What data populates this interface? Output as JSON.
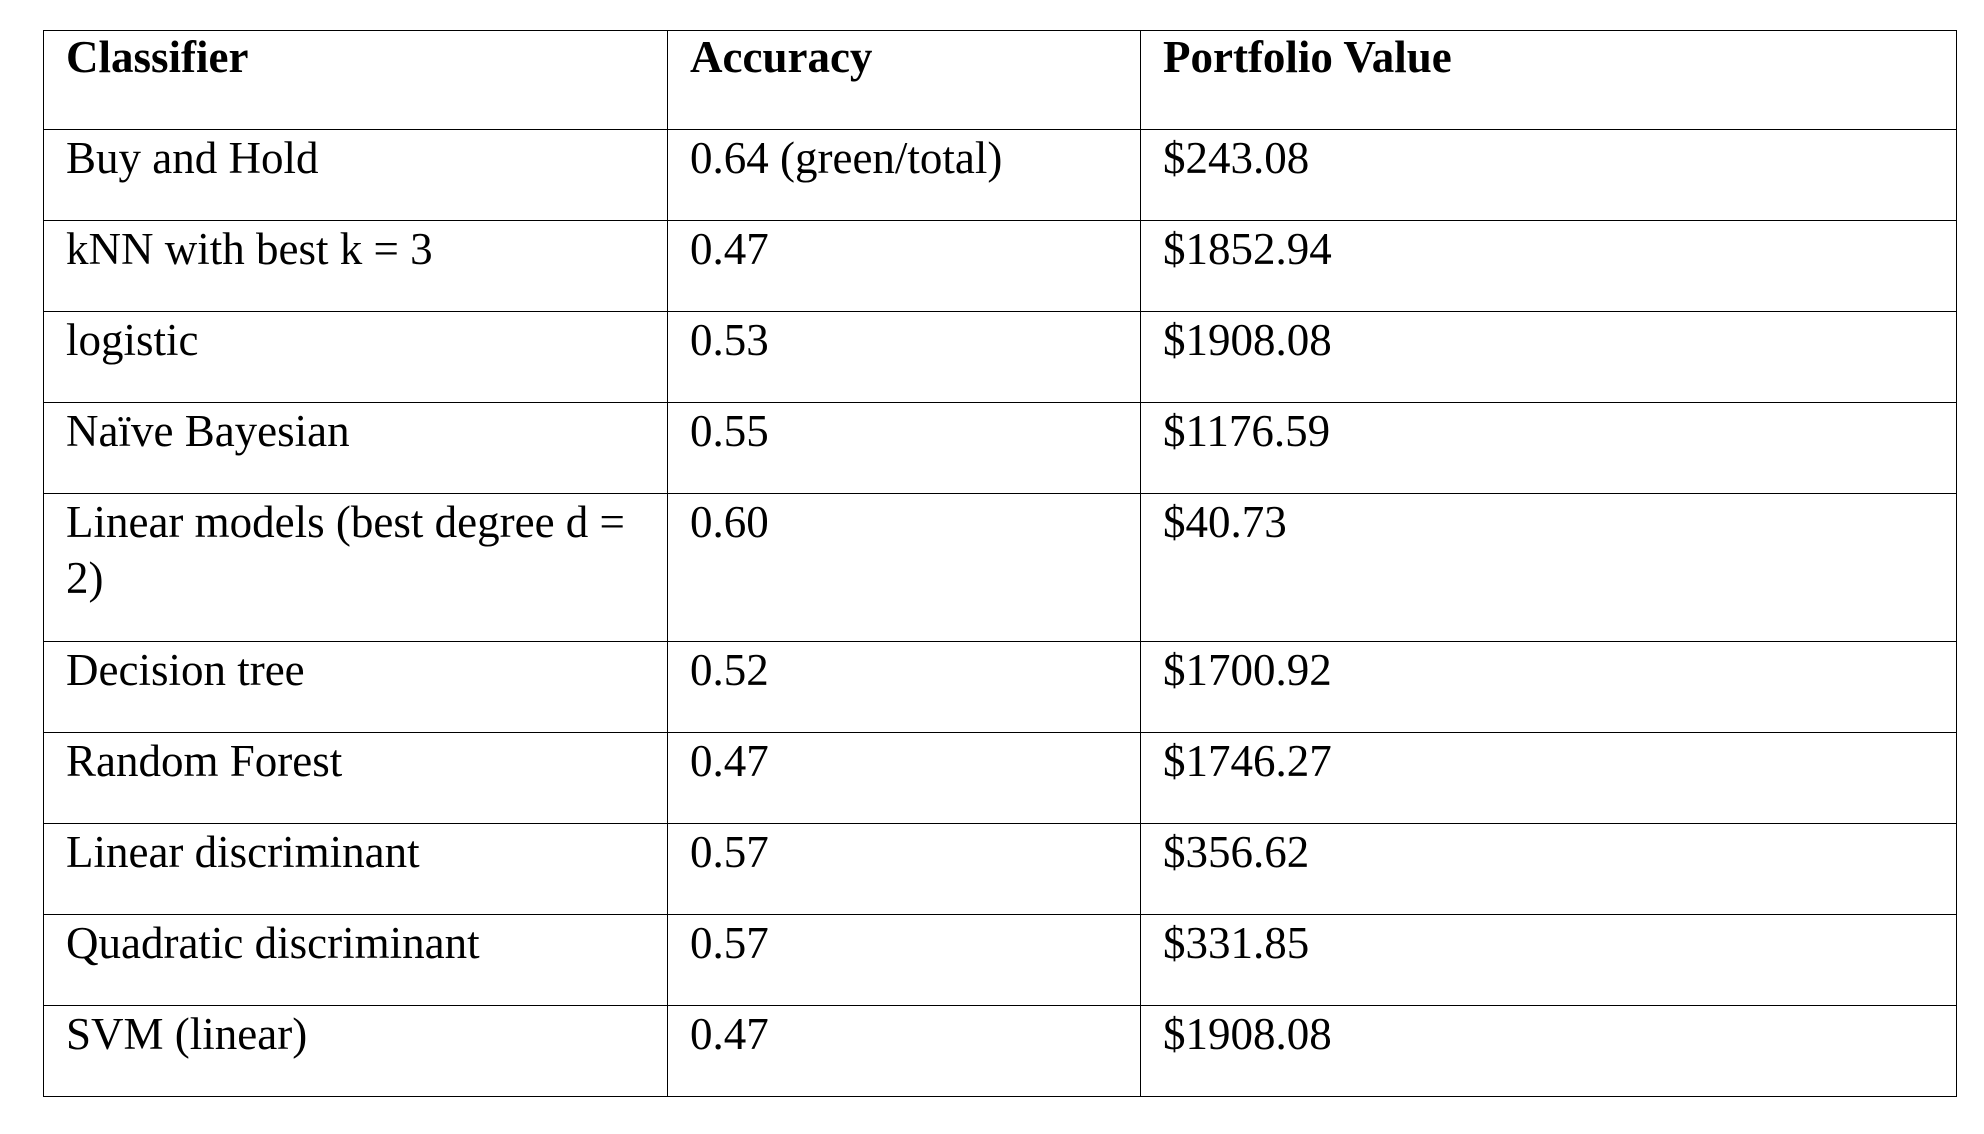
{
  "table": {
    "headers": [
      "Classifier",
      "Accuracy",
      "Portfolio Value"
    ],
    "rows": [
      [
        "Buy and Hold",
        "0.64 (green/total)",
        "$243.08"
      ],
      [
        "kNN with best k = 3",
        "0.47",
        "$1852.94"
      ],
      [
        "logistic",
        "0.53",
        "$1908.08"
      ],
      [
        "Naïve Bayesian",
        "0.55",
        "$1176.59"
      ],
      [
        "Linear models (best degree d = 2)",
        "0.60",
        "$40.73"
      ],
      [
        "Decision tree",
        "0.52",
        "$1700.92"
      ],
      [
        "Random Forest",
        "0.47",
        "$1746.27"
      ],
      [
        "Linear discriminant",
        "0.57",
        "$356.62"
      ],
      [
        "Quadratic discriminant",
        "0.57",
        "$331.85"
      ],
      [
        "SVM (linear)",
        "0.47",
        "$1908.08"
      ]
    ]
  }
}
